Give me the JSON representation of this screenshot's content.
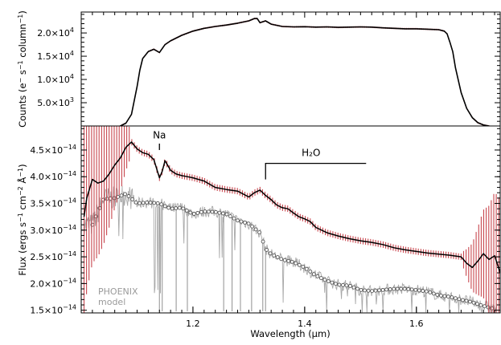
{
  "chart_data": [
    {
      "type": "line",
      "panel": "top",
      "ylabel": "Counts (e⁻ s⁻¹ column⁻¹)",
      "ylabel_parts": {
        "pre": "Counts (e",
        "s1": "−",
        "mid1": " s",
        "s2": "−1",
        "mid2": " column",
        "s3": "−1",
        "post": ")"
      },
      "xlim": [
        1.0,
        1.75
      ],
      "ylim": [
        0,
        24500
      ],
      "yticks": [
        {
          "value": 5000,
          "label": "5.0×10",
          "exp": "3"
        },
        {
          "value": 10000,
          "label": "1.0×10",
          "exp": "4"
        },
        {
          "value": 15000,
          "label": "1.5×10",
          "exp": "4"
        },
        {
          "value": 20000,
          "label": "2.0×10",
          "exp": "4"
        }
      ],
      "series": [
        {
          "color": "#000000",
          "x": [
            1.07,
            1.08,
            1.09,
            1.1,
            1.105,
            1.11,
            1.12,
            1.13,
            1.14,
            1.15,
            1.16,
            1.18,
            1.2,
            1.22,
            1.24,
            1.26,
            1.28,
            1.3,
            1.31,
            1.315,
            1.32,
            1.33,
            1.34,
            1.36,
            1.38,
            1.4,
            1.42,
            1.44,
            1.46,
            1.48,
            1.5,
            1.52,
            1.54,
            1.56,
            1.58,
            1.6,
            1.62,
            1.64,
            1.65,
            1.655,
            1.66,
            1.665,
            1.67,
            1.68,
            1.69,
            1.7,
            1.71,
            1.72,
            1.73
          ],
          "y": [
            0,
            600,
            2500,
            8500,
            12000,
            14500,
            16000,
            16500,
            15800,
            17500,
            18300,
            19500,
            20400,
            21000,
            21400,
            21700,
            22100,
            22600,
            23100,
            23100,
            22200,
            22600,
            21900,
            21400,
            21300,
            21350,
            21250,
            21300,
            21200,
            21250,
            21300,
            21250,
            21100,
            21000,
            20900,
            20900,
            20800,
            20700,
            20400,
            19800,
            18000,
            16000,
            12500,
            7200,
            3800,
            1800,
            700,
            200,
            0
          ]
        }
      ]
    },
    {
      "type": "line",
      "panel": "bottom",
      "xlabel": "Wavelength (μm)",
      "ylabel": "Flux (ergs s⁻¹ cm⁻² Å⁻¹)",
      "ylabel_parts": {
        "pre": "Flux (ergs s",
        "s1": "−1",
        "mid1": " cm",
        "s2": "−2",
        "mid2": " Å",
        "s3": "−1",
        "post": ")"
      },
      "xlim": [
        1.0,
        1.75
      ],
      "ylim": [
        1.45e-14,
        4.95e-14
      ],
      "xticks": [
        {
          "value": 1.2,
          "label": "1.2"
        },
        {
          "value": 1.4,
          "label": "1.4"
        },
        {
          "value": 1.6,
          "label": "1.6"
        }
      ],
      "yticks": [
        {
          "value": 1.5e-14,
          "label": "1.5×10",
          "exp": "−14"
        },
        {
          "value": 2e-14,
          "label": "2.0×10",
          "exp": "−14"
        },
        {
          "value": 2.5e-14,
          "label": "2.5×10",
          "exp": "−14"
        },
        {
          "value": 3e-14,
          "label": "3.0×10",
          "exp": "−14"
        },
        {
          "value": 3.5e-14,
          "label": "3.5×10",
          "exp": "−14"
        },
        {
          "value": 4e-14,
          "label": "4.0×10",
          "exp": "−14"
        },
        {
          "value": 4.5e-14,
          "label": "4.5×10",
          "exp": "−14"
        }
      ],
      "annotations": [
        {
          "text": "Na",
          "x": 1.14,
          "y": 4.72e-14,
          "tick_from": 4.62e-14,
          "tick_to": 4.5e-14
        },
        {
          "text": "H₂O",
          "bracket_x": [
            1.33,
            1.51
          ],
          "y": 4.25e-14,
          "drop_to": 3.95e-14
        }
      ],
      "model_label": [
        "PHOENIX",
        "model"
      ],
      "series": [
        {
          "kind": "observed",
          "color": "#000000",
          "error_color": "#c8474f",
          "x": [
            1.005,
            1.01,
            1.02,
            1.03,
            1.04,
            1.05,
            1.06,
            1.07,
            1.08,
            1.09,
            1.1,
            1.11,
            1.12,
            1.13,
            1.14,
            1.145,
            1.15,
            1.16,
            1.17,
            1.18,
            1.19,
            1.2,
            1.22,
            1.24,
            1.26,
            1.28,
            1.3,
            1.31,
            1.32,
            1.33,
            1.34,
            1.35,
            1.36,
            1.37,
            1.38,
            1.39,
            1.4,
            1.41,
            1.42,
            1.44,
            1.46,
            1.48,
            1.5,
            1.52,
            1.54,
            1.56,
            1.58,
            1.6,
            1.62,
            1.64,
            1.66,
            1.68,
            1.69,
            1.7,
            1.71,
            1.72,
            1.73,
            1.74,
            1.75
          ],
          "y": [
            3.25e-14,
            3.6e-14,
            3.95e-14,
            3.88e-14,
            3.92e-14,
            4.05e-14,
            4.22e-14,
            4.35e-14,
            4.55e-14,
            4.65e-14,
            4.52e-14,
            4.45e-14,
            4.42e-14,
            4.32e-14,
            3.98e-14,
            4.1e-14,
            4.3e-14,
            4.12e-14,
            4.05e-14,
            4.02e-14,
            4e-14,
            3.98e-14,
            3.92e-14,
            3.8e-14,
            3.76e-14,
            3.73e-14,
            3.62e-14,
            3.7e-14,
            3.75e-14,
            3.65e-14,
            3.57e-14,
            3.47e-14,
            3.42e-14,
            3.4e-14,
            3.32e-14,
            3.25e-14,
            3.21e-14,
            3.16e-14,
            3.05e-14,
            2.95e-14,
            2.89e-14,
            2.84e-14,
            2.8e-14,
            2.77e-14,
            2.73e-14,
            2.67e-14,
            2.63e-14,
            2.6e-14,
            2.57e-14,
            2.55e-14,
            2.53e-14,
            2.5e-14,
            2.38e-14,
            2.3e-14,
            2.42e-14,
            2.56e-14,
            2.45e-14,
            2.52e-14,
            2.2e-14
          ]
        },
        {
          "kind": "model",
          "name": "PHOENIX model",
          "color": "#a8a8a8",
          "marker_color": "#555555",
          "x": [
            1.02,
            1.04,
            1.06,
            1.08,
            1.1,
            1.12,
            1.14,
            1.16,
            1.18,
            1.2,
            1.22,
            1.24,
            1.26,
            1.28,
            1.3,
            1.32,
            1.33,
            1.34,
            1.36,
            1.38,
            1.4,
            1.42,
            1.44,
            1.46,
            1.48,
            1.5,
            1.52,
            1.54,
            1.56,
            1.58,
            1.6,
            1.62,
            1.64,
            1.66,
            1.68,
            1.7,
            1.72,
            1.74
          ],
          "y": [
            3.1e-14,
            3.58e-14,
            3.6e-14,
            3.68e-14,
            3.5e-14,
            3.52e-14,
            3.5e-14,
            3.4e-14,
            3.42e-14,
            3.3e-14,
            3.35e-14,
            3.34e-14,
            3.3e-14,
            3.18e-14,
            3.12e-14,
            2.95e-14,
            2.65e-14,
            2.55e-14,
            2.45e-14,
            2.4e-14,
            2.3e-14,
            2.15e-14,
            2.05e-14,
            1.98e-14,
            1.96e-14,
            1.88e-14,
            1.86e-14,
            1.88e-14,
            1.9e-14,
            1.9e-14,
            1.88e-14,
            1.85e-14,
            1.78e-14,
            1.75e-14,
            1.7e-14,
            1.65e-14,
            1.58e-14,
            1.52e-14
          ]
        }
      ]
    }
  ]
}
